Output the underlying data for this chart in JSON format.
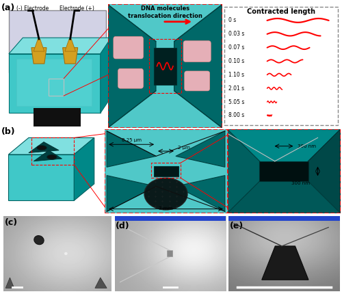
{
  "fig_width": 5.0,
  "fig_height": 4.3,
  "dpi": 100,
  "background_color": "#ffffff",
  "teal": "#40C8C8",
  "teal_dark": "#008888",
  "teal_mid": "#20B0B0",
  "teal_light": "#80E0E0",
  "teal_top": "#60D8D8",
  "dark_chan": "#004848",
  "red_color": "#FF0000",
  "time_labels": [
    "0 s",
    "0.03 s",
    "0.07 s",
    "0.10 s",
    "1.10 s",
    "2.01 s",
    "5.05 s",
    "8.00 s"
  ],
  "dna_lengths": [
    0.9,
    0.78,
    0.62,
    0.52,
    0.35,
    0.22,
    0.14,
    0.07
  ],
  "electrode_neg_label": "(-) Electrode",
  "electrode_pos_label": "Electrode (+)",
  "translocation_title": "DNA molecules\ntranslocation direction",
  "contracted_title": "Contracted length",
  "panel_label_fontsize": 9,
  "panel_label_weight": "bold"
}
